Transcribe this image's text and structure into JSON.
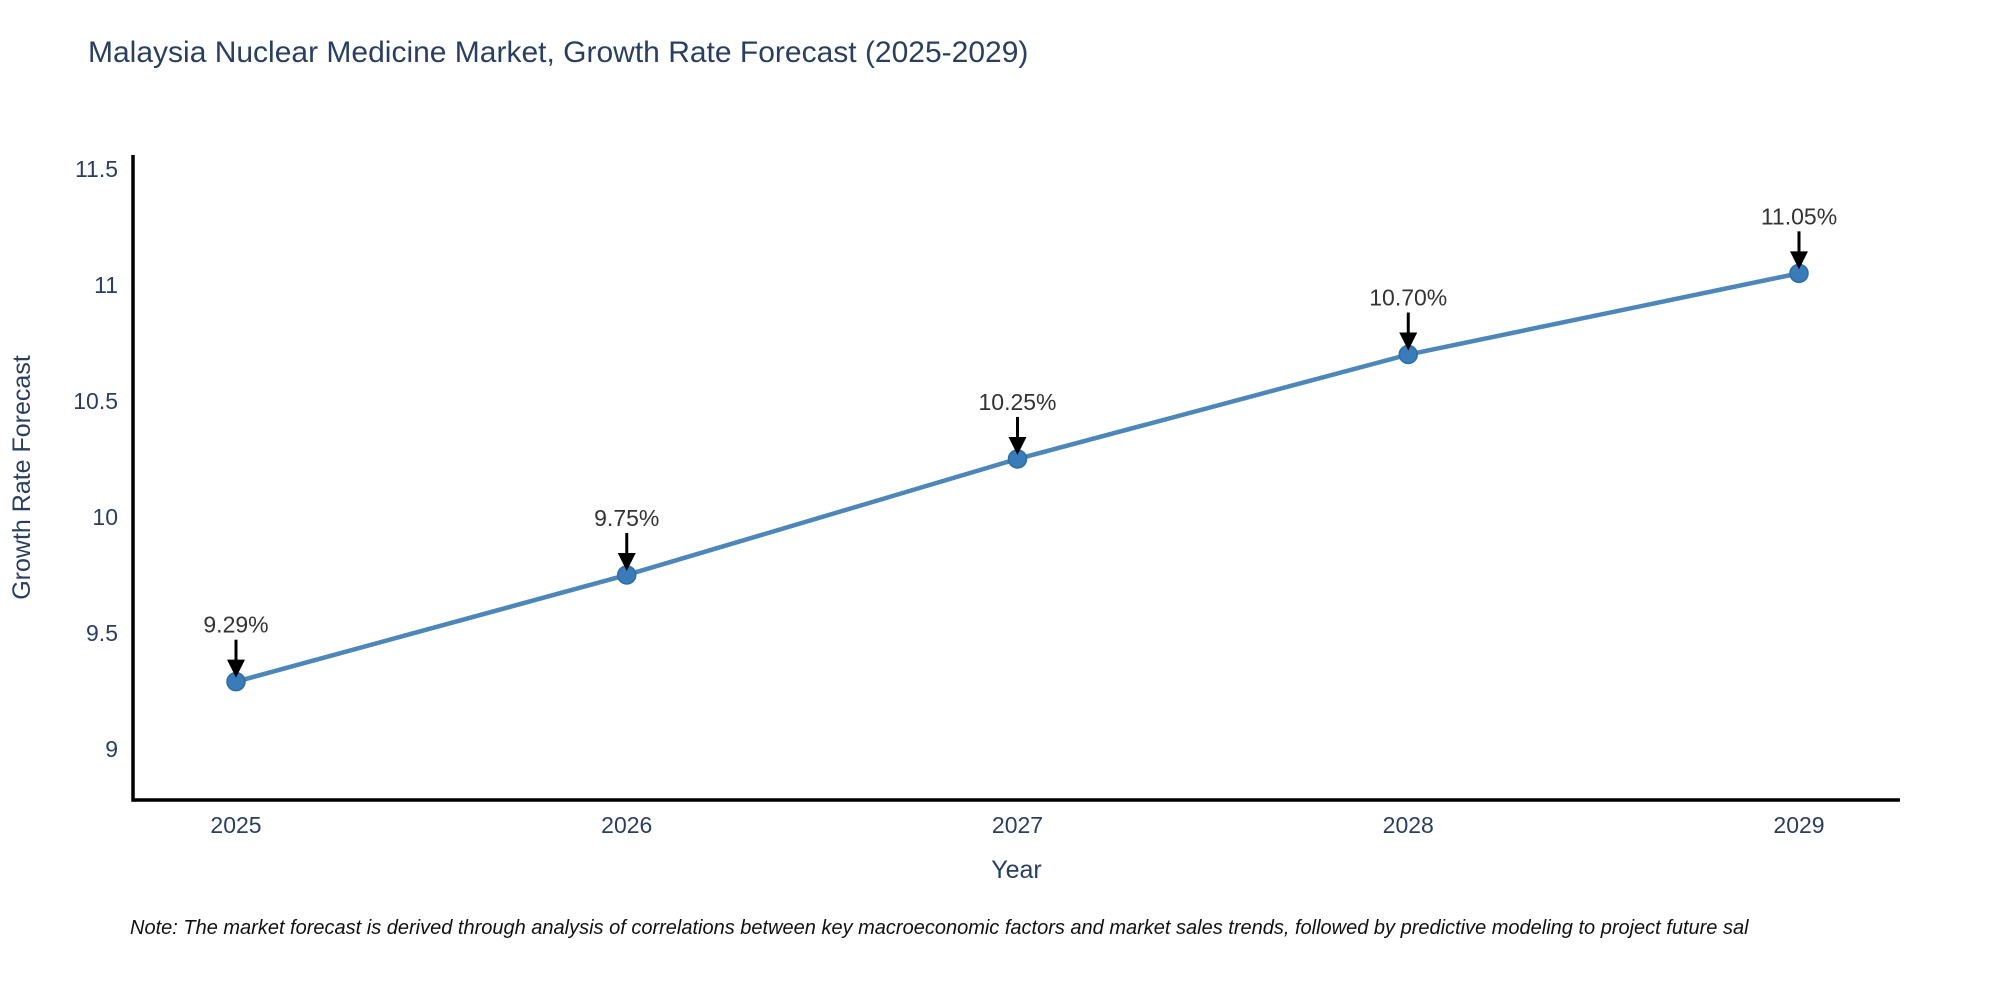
{
  "title": "Malaysia Nuclear Medicine Market, Growth Rate Forecast (2025-2029)",
  "note": "Note: The market forecast is derived through analysis of correlations between key macroeconomic factors and market sales trends, followed by predictive modeling to project future sal",
  "chart_data": {
    "type": "line",
    "title": "Malaysia Nuclear Medicine Market, Growth Rate Forecast (2025-2029)",
    "x": [
      2025,
      2026,
      2027,
      2028,
      2029
    ],
    "series": [
      {
        "name": "Growth Rate Forecast",
        "values": [
          9.29,
          9.75,
          10.25,
          10.7,
          11.05
        ]
      }
    ],
    "point_labels": [
      "9.29%",
      "9.75%",
      "10.25%",
      "10.70%",
      "11.05%"
    ],
    "xlabel": "Year",
    "ylabel": "Growth Rate Forecast",
    "yticks": [
      9,
      9.5,
      10,
      10.5,
      11,
      11.5
    ],
    "ylim": [
      8.78,
      11.56
    ],
    "grid": false,
    "legend": "none",
    "annotations": "arrow-down-to-each-point",
    "colors": {
      "line": "#4d87b9",
      "marker": "#3a7cba",
      "marker_edge": "#2e6da4",
      "axis": "#000000",
      "tick_text": "#2a3f5f",
      "annotation_text": "#333333",
      "arrow": "#000000",
      "background": "#ffffff"
    }
  }
}
